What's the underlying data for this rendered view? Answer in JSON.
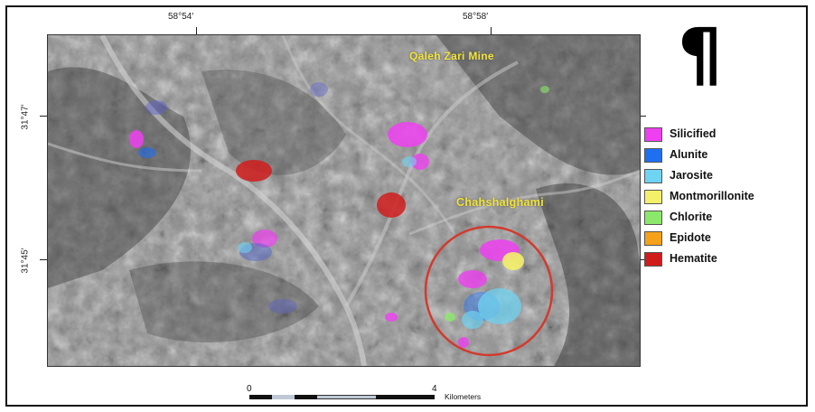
{
  "map": {
    "top_coordinates": [
      "58°54′",
      "58°58′"
    ],
    "left_coordinates": [
      "31°47′",
      "31°45′"
    ],
    "place_labels": [
      "Qaleh Zari Mine",
      "Chahshalghami"
    ],
    "symbol": "¶",
    "highlight_circle_color": "#d23a2e"
  },
  "legend": {
    "items": [
      {
        "label": "Silicified",
        "color": "#ee3ff0"
      },
      {
        "label": "Alunite",
        "color": "#1f6ff0"
      },
      {
        "label": "Jarosite",
        "color": "#6fd3f2"
      },
      {
        "label": "Montmorillonite",
        "color": "#f4f06a"
      },
      {
        "label": "Chlorite",
        "color": "#8be86a"
      },
      {
        "label": "Epidote",
        "color": "#f5a21a"
      },
      {
        "label": "Hematite",
        "color": "#d01c1c"
      }
    ]
  },
  "scale_bar": {
    "start": "0",
    "end": "4",
    "unit": "Kilometers"
  }
}
